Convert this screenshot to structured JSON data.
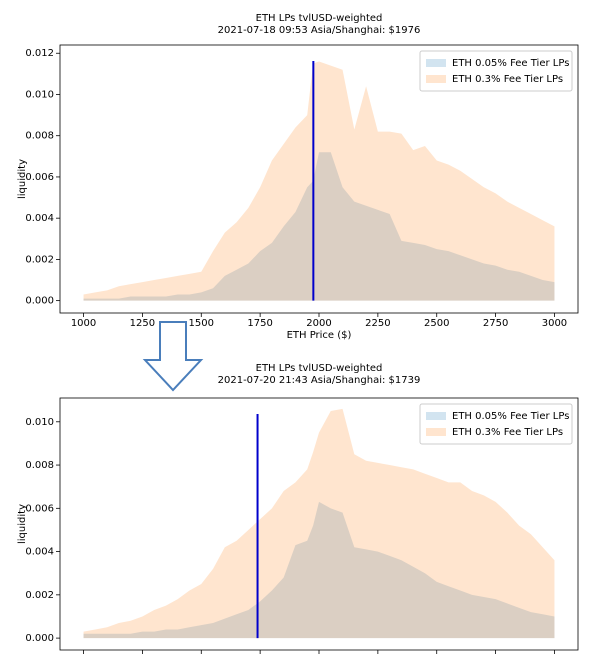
{
  "chart_data": [
    {
      "type": "area",
      "title": "ETH LPs tvlUSD-weighted",
      "subtitle": "2021-07-18 09:53 Asia/Shanghai: $1976",
      "xlabel": "ETH Price ($)",
      "ylabel": "liquidity",
      "current_price": 1976,
      "current_price_color": "#0000cc",
      "x": [
        1000,
        1050,
        1100,
        1150,
        1200,
        1250,
        1300,
        1350,
        1400,
        1450,
        1500,
        1550,
        1600,
        1650,
        1700,
        1750,
        1800,
        1850,
        1900,
        1950,
        1975,
        2000,
        2050,
        2100,
        2150,
        2200,
        2250,
        2300,
        2350,
        2400,
        2450,
        2500,
        2550,
        2600,
        2650,
        2700,
        2750,
        2800,
        2850,
        2900,
        2950,
        3000
      ],
      "series": [
        {
          "name": "ETH 0.05% Fee Tier LPs",
          "color": "#1f77b4",
          "alpha": 0.2,
          "values": [
            0.0001,
            0.0001,
            0.0001,
            0.0001,
            0.0002,
            0.0002,
            0.0002,
            0.0002,
            0.0003,
            0.0003,
            0.0004,
            0.0006,
            0.0012,
            0.0015,
            0.0018,
            0.0024,
            0.0028,
            0.0036,
            0.0043,
            0.0055,
            0.0058,
            0.0072,
            0.0072,
            0.0055,
            0.0048,
            0.0046,
            0.0044,
            0.0042,
            0.0029,
            0.0028,
            0.0027,
            0.0025,
            0.0024,
            0.0022,
            0.002,
            0.0018,
            0.0017,
            0.0015,
            0.0014,
            0.0012,
            0.001,
            0.0009
          ]
        },
        {
          "name": "ETH 0.3% Fee Tier LPs",
          "color": "#ff7f0e",
          "alpha": 0.2,
          "values": [
            0.0003,
            0.0004,
            0.0005,
            0.0007,
            0.0008,
            0.0009,
            0.001,
            0.0011,
            0.0012,
            0.0013,
            0.0014,
            0.0024,
            0.0033,
            0.0038,
            0.0045,
            0.0055,
            0.0068,
            0.0076,
            0.0084,
            0.009,
            0.0115,
            0.0116,
            0.0114,
            0.0112,
            0.0083,
            0.0104,
            0.0082,
            0.0082,
            0.0081,
            0.0073,
            0.0075,
            0.0068,
            0.0066,
            0.0063,
            0.0059,
            0.0055,
            0.0052,
            0.0048,
            0.0045,
            0.0042,
            0.0039,
            0.0036
          ]
        }
      ],
      "xlim": [
        900,
        3100
      ],
      "xticks": [
        1000,
        1250,
        1500,
        1750,
        2000,
        2250,
        2500,
        2750,
        3000
      ],
      "ylim": [
        -0.0006,
        0.0124
      ],
      "yticks": [
        {
          "value": 0,
          "label": "0.000"
        },
        {
          "value": 0.002,
          "label": "0.002"
        },
        {
          "value": 0.004,
          "label": "0.004"
        },
        {
          "value": 0.006,
          "label": "0.006"
        },
        {
          "value": 0.008,
          "label": "0.008"
        },
        {
          "value": 0.01,
          "label": "0.010"
        },
        {
          "value": 0.012,
          "label": "0.012"
        }
      ],
      "legend": "upper right"
    },
    {
      "type": "area",
      "title": "ETH LPs tvlUSD-weighted",
      "subtitle": "2021-07-20 21:43 Asia/Shanghai: $1739",
      "ylabel": "liquidity",
      "current_price": 1739,
      "current_price_color": "#0000cc",
      "x": [
        1000,
        1050,
        1100,
        1150,
        1200,
        1250,
        1300,
        1350,
        1400,
        1450,
        1500,
        1550,
        1600,
        1650,
        1700,
        1750,
        1800,
        1850,
        1900,
        1950,
        1975,
        2000,
        2050,
        2100,
        2150,
        2200,
        2250,
        2300,
        2350,
        2400,
        2450,
        2500,
        2550,
        2600,
        2650,
        2700,
        2750,
        2800,
        2850,
        2900,
        2950,
        3000
      ],
      "series": [
        {
          "name": "ETH 0.05% Fee Tier LPs",
          "color": "#1f77b4",
          "alpha": 0.2,
          "values": [
            0.0002,
            0.0002,
            0.0002,
            0.0002,
            0.0002,
            0.0003,
            0.0003,
            0.0004,
            0.0004,
            0.0005,
            0.0006,
            0.0007,
            0.0009,
            0.0011,
            0.0013,
            0.0017,
            0.0022,
            0.0028,
            0.0043,
            0.0045,
            0.0052,
            0.0063,
            0.006,
            0.0058,
            0.0042,
            0.0041,
            0.004,
            0.0038,
            0.0036,
            0.0033,
            0.003,
            0.0026,
            0.0024,
            0.0022,
            0.002,
            0.0019,
            0.0018,
            0.0016,
            0.0014,
            0.0012,
            0.0011,
            0.001
          ]
        },
        {
          "name": "ETH 0.3% Fee Tier LPs",
          "color": "#ff7f0e",
          "alpha": 0.2,
          "values": [
            0.0003,
            0.0004,
            0.0005,
            0.0007,
            0.0008,
            0.001,
            0.0013,
            0.0015,
            0.0018,
            0.0022,
            0.0025,
            0.0032,
            0.0042,
            0.0045,
            0.005,
            0.0055,
            0.006,
            0.0068,
            0.0072,
            0.0078,
            0.0086,
            0.0095,
            0.0105,
            0.0106,
            0.0085,
            0.0082,
            0.0081,
            0.008,
            0.0079,
            0.0078,
            0.0076,
            0.0074,
            0.0072,
            0.0072,
            0.0068,
            0.0066,
            0.0063,
            0.0058,
            0.0052,
            0.0048,
            0.0042,
            0.0036
          ]
        }
      ],
      "xlim": [
        900,
        3100
      ],
      "xticks": [
        1000,
        1250,
        1500,
        1750,
        2000,
        2250,
        2500,
        2750,
        3000
      ],
      "ylim": [
        -0.00055,
        0.0111
      ],
      "yticks": [
        {
          "value": 0,
          "label": "0.000"
        },
        {
          "value": 0.002,
          "label": "0.002"
        },
        {
          "value": 0.004,
          "label": "0.004"
        },
        {
          "value": 0.006,
          "label": "0.006"
        },
        {
          "value": 0.008,
          "label": "0.008"
        },
        {
          "value": 0.01,
          "label": "0.010"
        }
      ],
      "legend": "upper right"
    }
  ]
}
